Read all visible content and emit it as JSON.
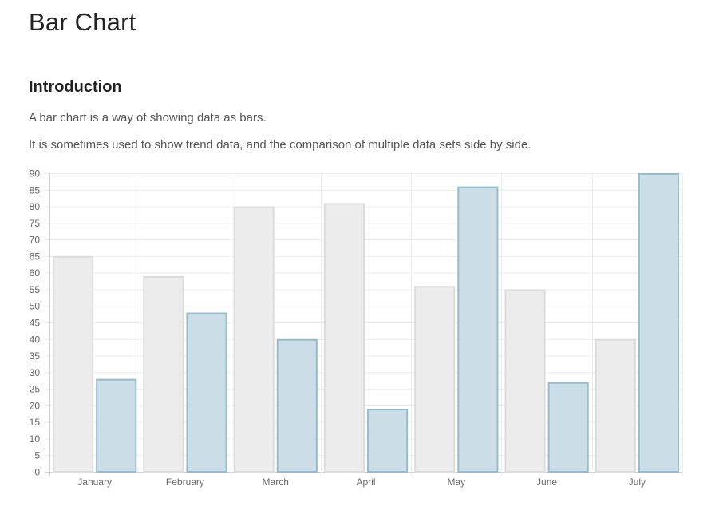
{
  "page": {
    "title": "Bar Chart"
  },
  "intro": {
    "heading": "Introduction",
    "paragraphs": [
      "A bar chart is a way of showing data as bars.",
      "It is sometimes used to show trend data, and the comparison of multiple data sets side by side."
    ]
  },
  "chart_data": {
    "type": "bar",
    "title": "",
    "xlabel": "",
    "ylabel": "",
    "categories": [
      "January",
      "February",
      "March",
      "April",
      "May",
      "June",
      "July"
    ],
    "series": [
      {
        "values": [
          65,
          59,
          80,
          81,
          56,
          55,
          40
        ],
        "fill": "#ececec",
        "stroke": "#dcdcdc"
      },
      {
        "values": [
          28,
          48,
          40,
          19,
          86,
          27,
          90
        ],
        "fill": "#cbdde6",
        "stroke": "#97bbcd"
      }
    ],
    "ylim": [
      0,
      90
    ],
    "yticks": [
      "0",
      "5",
      "10",
      "15",
      "20",
      "25",
      "30",
      "35",
      "40",
      "45",
      "50",
      "55",
      "60",
      "65",
      "70",
      "75",
      "80",
      "85",
      "90"
    ],
    "grid": true,
    "legend": "none"
  }
}
